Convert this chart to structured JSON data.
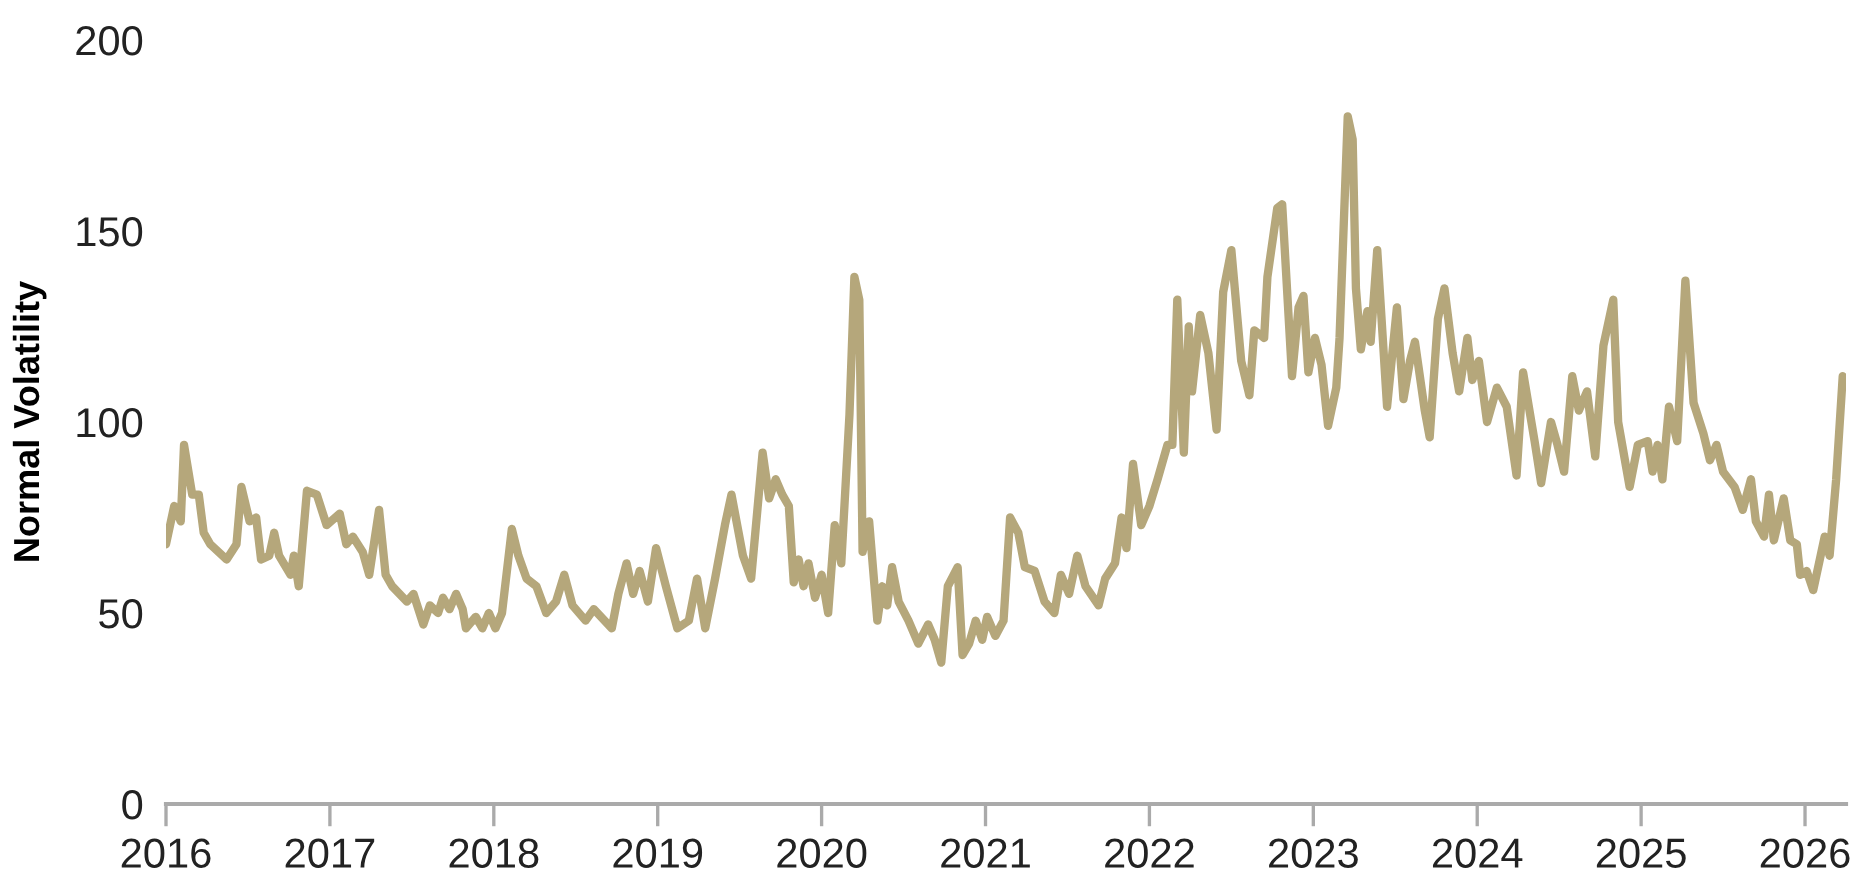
{
  "chart_data": {
    "type": "line",
    "ylabel": "Normal Volatility",
    "x": [
      2016.0,
      2016.05,
      2016.09,
      2016.11,
      2016.16,
      2016.2,
      2016.23,
      2016.27,
      2016.37,
      2016.43,
      2016.46,
      2016.51,
      2016.55,
      2016.58,
      2016.63,
      2016.66,
      2016.69,
      2016.76,
      2016.78,
      2016.81,
      2016.86,
      2016.92,
      2016.98,
      2017.06,
      2017.1,
      2017.14,
      2017.2,
      2017.24,
      2017.3,
      2017.34,
      2017.38,
      2017.47,
      2017.51,
      2017.57,
      2017.61,
      2017.66,
      2017.69,
      2017.73,
      2017.77,
      2017.81,
      2017.83,
      2017.89,
      2017.93,
      2017.97,
      2018.01,
      2018.05,
      2018.11,
      2018.15,
      2018.2,
      2018.26,
      2018.32,
      2018.38,
      2018.43,
      2018.48,
      2018.56,
      2018.61,
      2018.72,
      2018.76,
      2018.81,
      2018.85,
      2018.89,
      2018.94,
      2018.99,
      2019.05,
      2019.12,
      2019.19,
      2019.24,
      2019.29,
      2019.35,
      2019.41,
      2019.45,
      2019.52,
      2019.57,
      2019.64,
      2019.68,
      2019.72,
      2019.76,
      2019.8,
      2019.83,
      2019.86,
      2019.89,
      2019.92,
      2019.96,
      2020.0,
      2020.04,
      2020.08,
      2020.12,
      2020.17,
      2020.2,
      2020.23,
      2020.25,
      2020.29,
      2020.34,
      2020.37,
      2020.4,
      2020.43,
      2020.47,
      2020.53,
      2020.59,
      2020.65,
      2020.69,
      2020.73,
      2020.77,
      2020.83,
      2020.86,
      2020.9,
      2020.94,
      2020.98,
      2021.01,
      2021.06,
      2021.11,
      2021.15,
      2021.2,
      2021.24,
      2021.3,
      2021.36,
      2021.42,
      2021.46,
      2021.51,
      2021.56,
      2021.61,
      2021.69,
      2021.73,
      2021.79,
      2021.83,
      2021.86,
      2021.9,
      2021.95,
      2022.0,
      2022.05,
      2022.11,
      2022.14,
      2022.17,
      2022.21,
      2022.24,
      2022.26,
      2022.31,
      2022.36,
      2022.41,
      2022.45,
      2022.5,
      2022.56,
      2022.61,
      2022.64,
      2022.7,
      2022.72,
      2022.78,
      2022.81,
      2022.87,
      2022.91,
      2022.94,
      2022.97,
      2023.01,
      2023.05,
      2023.09,
      2023.14,
      2023.16,
      2023.21,
      2023.24,
      2023.26,
      2023.29,
      2023.33,
      2023.35,
      2023.39,
      2023.45,
      2023.51,
      2023.55,
      2023.59,
      2023.62,
      2023.68,
      2023.71,
      2023.76,
      2023.8,
      2023.85,
      2023.89,
      2023.94,
      2023.97,
      2024.01,
      2024.06,
      2024.12,
      2024.18,
      2024.24,
      2024.28,
      2024.35,
      2024.39,
      2024.45,
      2024.49,
      2024.53,
      2024.58,
      2024.62,
      2024.67,
      2024.72,
      2024.77,
      2024.83,
      2024.86,
      2024.93,
      2024.98,
      2025.04,
      2025.07,
      2025.1,
      2025.13,
      2025.17,
      2025.22,
      2025.27,
      2025.32,
      2025.38,
      2025.42,
      2025.46,
      2025.5,
      2025.57,
      2025.62,
      2025.67,
      2025.7,
      2025.75,
      2025.78,
      2025.81,
      2025.87,
      2025.91,
      2025.95,
      2025.97,
      2026.01,
      2026.05,
      2026.09,
      2026.12,
      2026.15,
      2026.19,
      2026.23
    ],
    "series": [
      {
        "color": "#b5a77b",
        "values": [
          68,
          78,
          74,
          94,
          81,
          81,
          71,
          68,
          64,
          68,
          83,
          74,
          75,
          64,
          65,
          71,
          65,
          60,
          65,
          57,
          82,
          81,
          73,
          76,
          68,
          70,
          66,
          60,
          77,
          60,
          57,
          53,
          55,
          47,
          52,
          50,
          54,
          51,
          55,
          51,
          46,
          49,
          46,
          50,
          46,
          50,
          72,
          65,
          59,
          57,
          50,
          53,
          60,
          52,
          48,
          51,
          46,
          55,
          63,
          55,
          61,
          53,
          67,
          57,
          46,
          48,
          59,
          46,
          59,
          73,
          81,
          65,
          59,
          92,
          80,
          85,
          81,
          78,
          58,
          64,
          57,
          63,
          54,
          60,
          50,
          73,
          63,
          102,
          138,
          132,
          66,
          74,
          48,
          57,
          52,
          62,
          53,
          48,
          42,
          47,
          43,
          37,
          57,
          62,
          39,
          42,
          48,
          43,
          49,
          44,
          48,
          75,
          71,
          62,
          61,
          53,
          50,
          60,
          55,
          65,
          57,
          52,
          59,
          63,
          75,
          67,
          89,
          73,
          78,
          85,
          94,
          94,
          132,
          92,
          125,
          108,
          128,
          118,
          98,
          134,
          145,
          116,
          107,
          124,
          122,
          138,
          156,
          157,
          112,
          130,
          133,
          113,
          122,
          115,
          99,
          109,
          122,
          180,
          174,
          135,
          119,
          129,
          121,
          145,
          104,
          130,
          106,
          116,
          121,
          103,
          96,
          127,
          135,
          118,
          108,
          122,
          111,
          116,
          100,
          109,
          104,
          86,
          113,
          95,
          84,
          100,
          94,
          87,
          112,
          103,
          108,
          91,
          120,
          132,
          100,
          83,
          94,
          95,
          87,
          94,
          85,
          104,
          95,
          137,
          105,
          97,
          90,
          94,
          87,
          83,
          77,
          85,
          74,
          70,
          81,
          69,
          80,
          69,
          68,
          60,
          61,
          56,
          64,
          70,
          65,
          85,
          112
        ]
      }
    ],
    "xlim": [
      2016,
      2026.25
    ],
    "xticks": [
      2016,
      2017,
      2018,
      2019,
      2020,
      2021,
      2022,
      2023,
      2024,
      2025,
      2026
    ],
    "ylim": [
      0,
      200
    ],
    "yticks": [
      0,
      50,
      100,
      150,
      200
    ],
    "grid": false,
    "marker": "none",
    "line_style": "solid"
  }
}
